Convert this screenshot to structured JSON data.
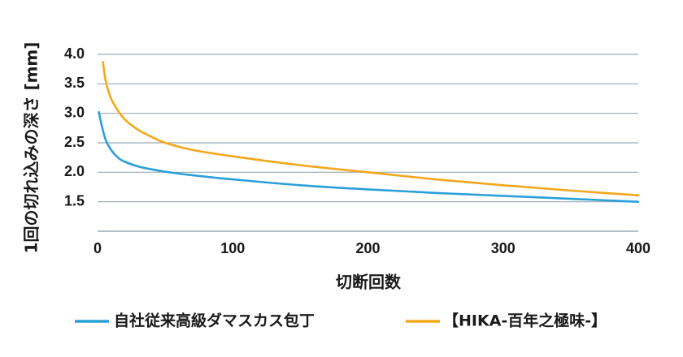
{
  "chart_data": {
    "type": "line",
    "title": "",
    "xlabel": "切断回数",
    "ylabel": "1回の切れ込みの深さ [mm]",
    "xlim": [
      0,
      400
    ],
    "ylim": [
      1.0,
      4.0
    ],
    "x_ticks": [
      "0",
      "100",
      "200",
      "300",
      "400"
    ],
    "y_ticks": [
      "1.5",
      "2.0",
      "2.5",
      "3.0",
      "3.5",
      "4.0"
    ],
    "grid": "horizontal",
    "legend_position": "bottom",
    "series": [
      {
        "name": "自社従来高級ダマスカス包丁",
        "color": "#2a9fd8",
        "x": [
          1,
          3,
          6,
          10,
          15,
          20,
          30,
          40,
          50,
          70,
          100,
          150,
          200,
          250,
          300,
          350,
          400
        ],
        "y": [
          3.02,
          2.8,
          2.55,
          2.38,
          2.25,
          2.18,
          2.1,
          2.05,
          2.01,
          1.95,
          1.88,
          1.78,
          1.71,
          1.65,
          1.6,
          1.55,
          1.5
        ]
      },
      {
        "name": "【HIKA-百年之極味-】",
        "color": "#f3a81c",
        "x": [
          4,
          6,
          10,
          15,
          20,
          30,
          40,
          50,
          70,
          100,
          150,
          200,
          250,
          300,
          350,
          400
        ],
        "y": [
          3.87,
          3.55,
          3.25,
          3.05,
          2.9,
          2.72,
          2.6,
          2.5,
          2.38,
          2.27,
          2.12,
          2.0,
          1.88,
          1.78,
          1.69,
          1.61
        ]
      }
    ]
  }
}
